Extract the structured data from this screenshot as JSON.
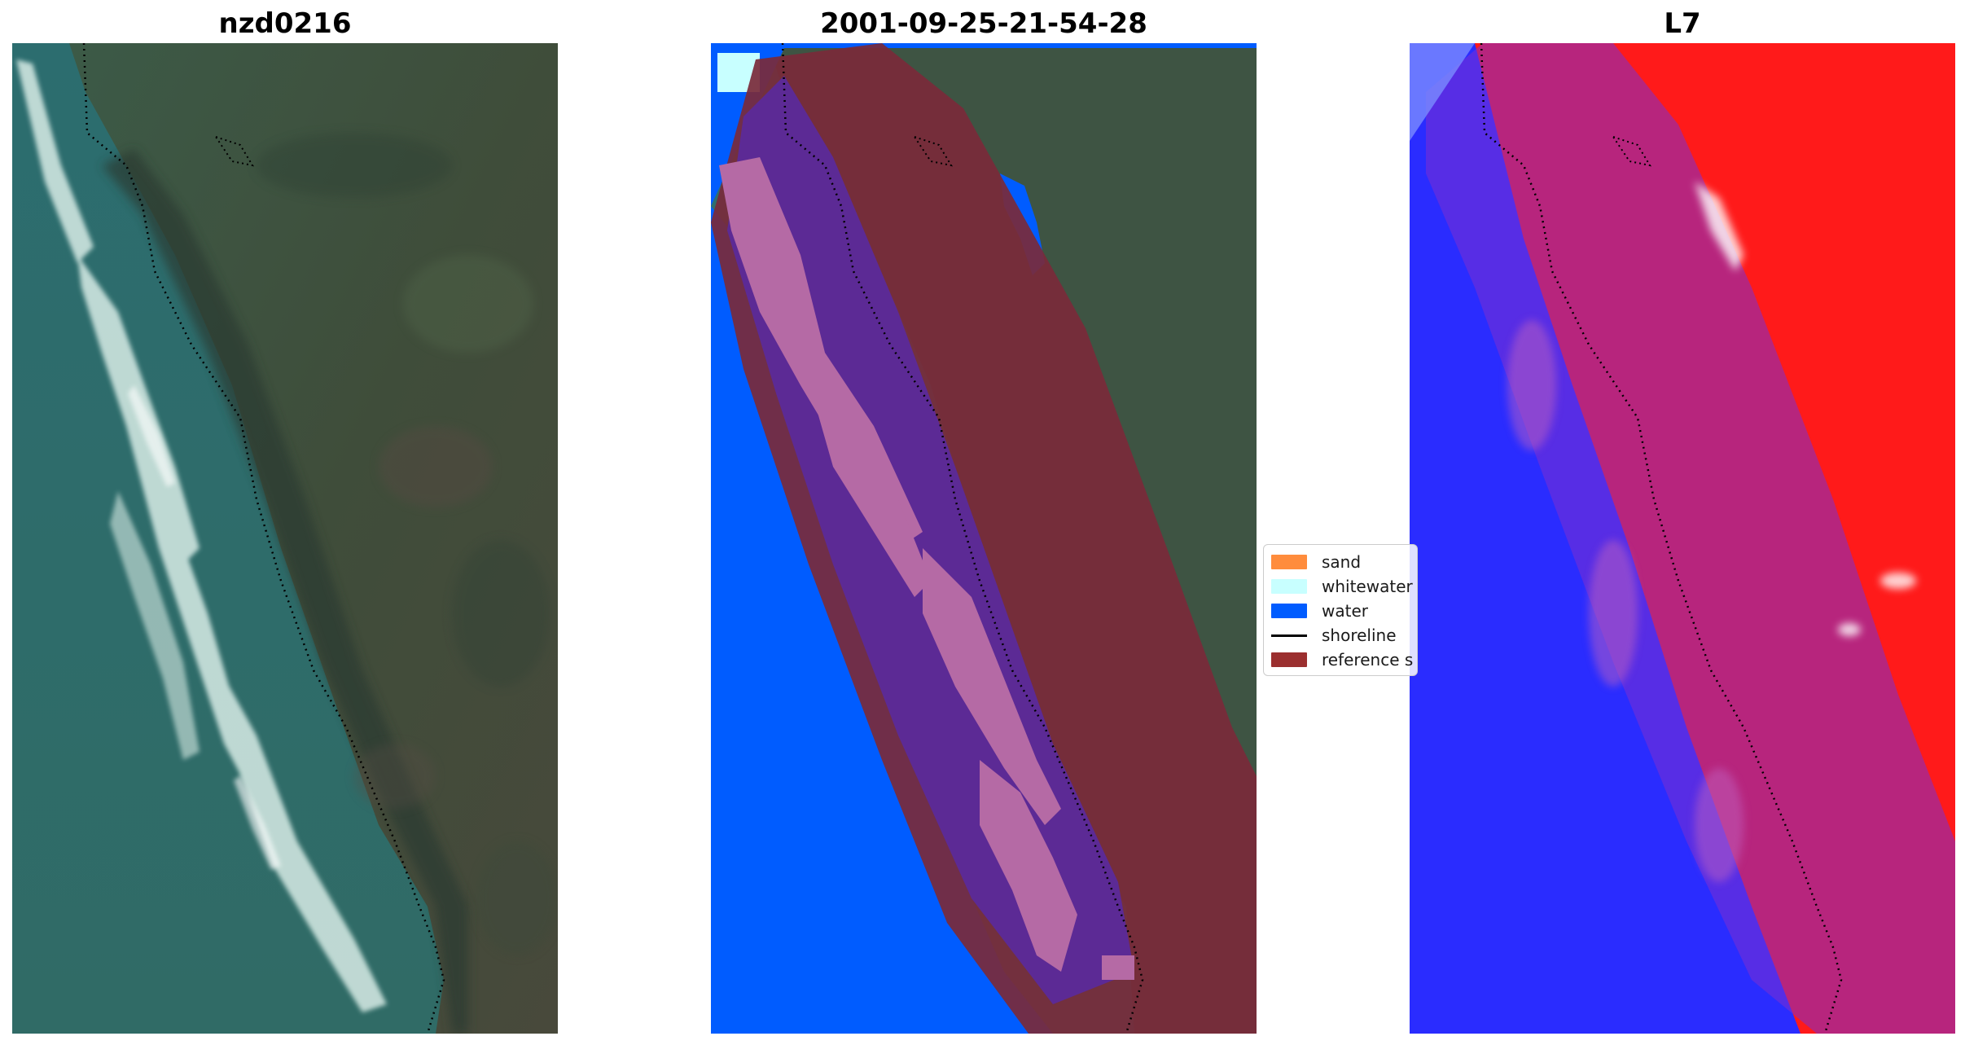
{
  "panels": {
    "left_title": "nzd0216",
    "middle_title": "2001-09-25-21-54-28",
    "right_title": "L7"
  },
  "legend": {
    "items": [
      {
        "label": "sand",
        "color": "#ff8c3c"
      },
      {
        "label": "whitewater",
        "color": "#c8ffff"
      },
      {
        "label": "water",
        "color": "#005cff"
      },
      {
        "label": "shoreline",
        "color": "#000000"
      },
      {
        "label": "reference s",
        "color": "#9b2f2f"
      }
    ]
  },
  "colors": {
    "water_class": "#005cff",
    "whitewater_class": "#c8ffff",
    "reference_area": "#9b2f2f",
    "sea_rgb": "#2f6f6e",
    "land_rgb": "#3d4f3b",
    "index_water": "#2a2cff",
    "index_land": "#ff1a1a"
  }
}
